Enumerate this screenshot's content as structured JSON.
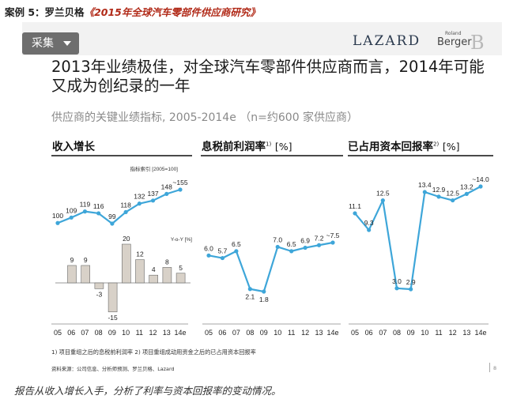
{
  "header": {
    "case_label": "案例 5：罗兰贝格",
    "book_title": "《2015年全球汽车零部件供应商研究》"
  },
  "toolbar": {
    "collect_label": "采集"
  },
  "logos": {
    "lazard": "LAZARD",
    "rb_small": "Roland",
    "rb_name": "Berger",
    "rb_mark": "B"
  },
  "slide": {
    "headline": "2013年业绩极佳，对全球汽车零部件供应商而言，2014年可能又成为创纪录的一年",
    "subtitle": "供应商的关键业绩指标, 2005-2014e （n=约600 家供应商）",
    "footnote": "1) 项目重组之后的息税前利润率    2) 项目重组成动用资金之后的已占用资本回报率",
    "source": "资料来源：公司信息、分析师预测、罗兰贝格、Lazard",
    "page_number": "8"
  },
  "caption": "报告从收入增长入手，分析了利率与资本回报率的变动情况。",
  "colors": {
    "line": "#3ea6d9",
    "bar": "#d8d1c8",
    "bar_stroke": "#6a6a6a",
    "rule": "#4a4a4a"
  },
  "chart_data": [
    {
      "type": "line",
      "title": "收入增长",
      "index_label": "指标索引 [2005=100]",
      "categories": [
        "05",
        "06",
        "07",
        "08",
        "09",
        "10",
        "11",
        "12",
        "13",
        "14e"
      ],
      "values": [
        100,
        109,
        119,
        116,
        99,
        118,
        132,
        137,
        148,
        155
      ],
      "value_labels": [
        "100",
        "109",
        "119",
        "116",
        "99",
        "118",
        "132",
        "137",
        "148",
        "~155"
      ],
      "sub_chart": {
        "type": "bar",
        "title": "Y-o-Y [%]",
        "values": [
          9,
          9,
          -3,
          -15,
          20,
          12,
          4,
          8,
          5
        ],
        "value_labels": [
          "9",
          "9",
          "-3",
          "-15",
          "20",
          "12",
          "4",
          "8",
          "5"
        ]
      }
    },
    {
      "type": "line",
      "title": "息税前利润率",
      "title_sup": "1)",
      "unit": "[%]",
      "categories": [
        "05",
        "06",
        "07",
        "08",
        "09",
        "10",
        "11",
        "12",
        "13",
        "14e"
      ],
      "values": [
        6.0,
        5.7,
        6.5,
        2.1,
        1.8,
        7.0,
        6.5,
        6.9,
        7.2,
        7.5
      ],
      "value_labels": [
        "6.0",
        "5.7",
        "6.5",
        "2.1",
        "1.8",
        "7.0",
        "6.5",
        "6.9",
        "7.2",
        "~7.5"
      ]
    },
    {
      "type": "line",
      "title": "已占用资本回报率",
      "title_sup": "2)",
      "unit": "[%]",
      "categories": [
        "05",
        "06",
        "07",
        "08",
        "09",
        "10",
        "11",
        "12",
        "13",
        "14e"
      ],
      "values": [
        11.1,
        9.3,
        12.5,
        3.0,
        2.9,
        13.4,
        12.9,
        12.5,
        13.2,
        14.0
      ],
      "value_labels": [
        "11.1",
        "9.3",
        "12.5",
        "3.0",
        "2.9",
        "13.4",
        "12.9",
        "12.5",
        "13.2",
        "~14.0"
      ]
    }
  ]
}
